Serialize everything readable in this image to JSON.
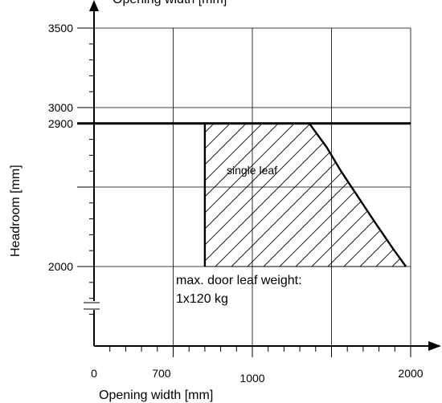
{
  "chart_data": {
    "type": "area",
    "title": "Opening width [mm]",
    "xlabel": "Opening width [mm]",
    "ylabel": "Headroom [mm]",
    "xlim": [
      0,
      2000
    ],
    "ylim": [
      1500,
      3500
    ],
    "x_ticks": [
      0,
      700,
      1000,
      2000
    ],
    "y_ticks": [
      2000,
      2900,
      3000,
      3500
    ],
    "grid": true,
    "max_headroom": 2900,
    "region": {
      "name": "single leaf",
      "hatched": true,
      "boundary": [
        {
          "x": 700,
          "y": 2000
        },
        {
          "x": 700,
          "y": 2900
        },
        {
          "x": 1360,
          "y": 2900
        },
        {
          "x": 1470,
          "y": 2750
        },
        {
          "x": 1560,
          "y": 2600
        },
        {
          "x": 1660,
          "y": 2450
        },
        {
          "x": 1780,
          "y": 2270
        },
        {
          "x": 1890,
          "y": 2110
        },
        {
          "x": 1970,
          "y": 2000
        }
      ]
    },
    "annotations": [
      "max. door leaf weight:",
      "1x120 kg"
    ]
  }
}
